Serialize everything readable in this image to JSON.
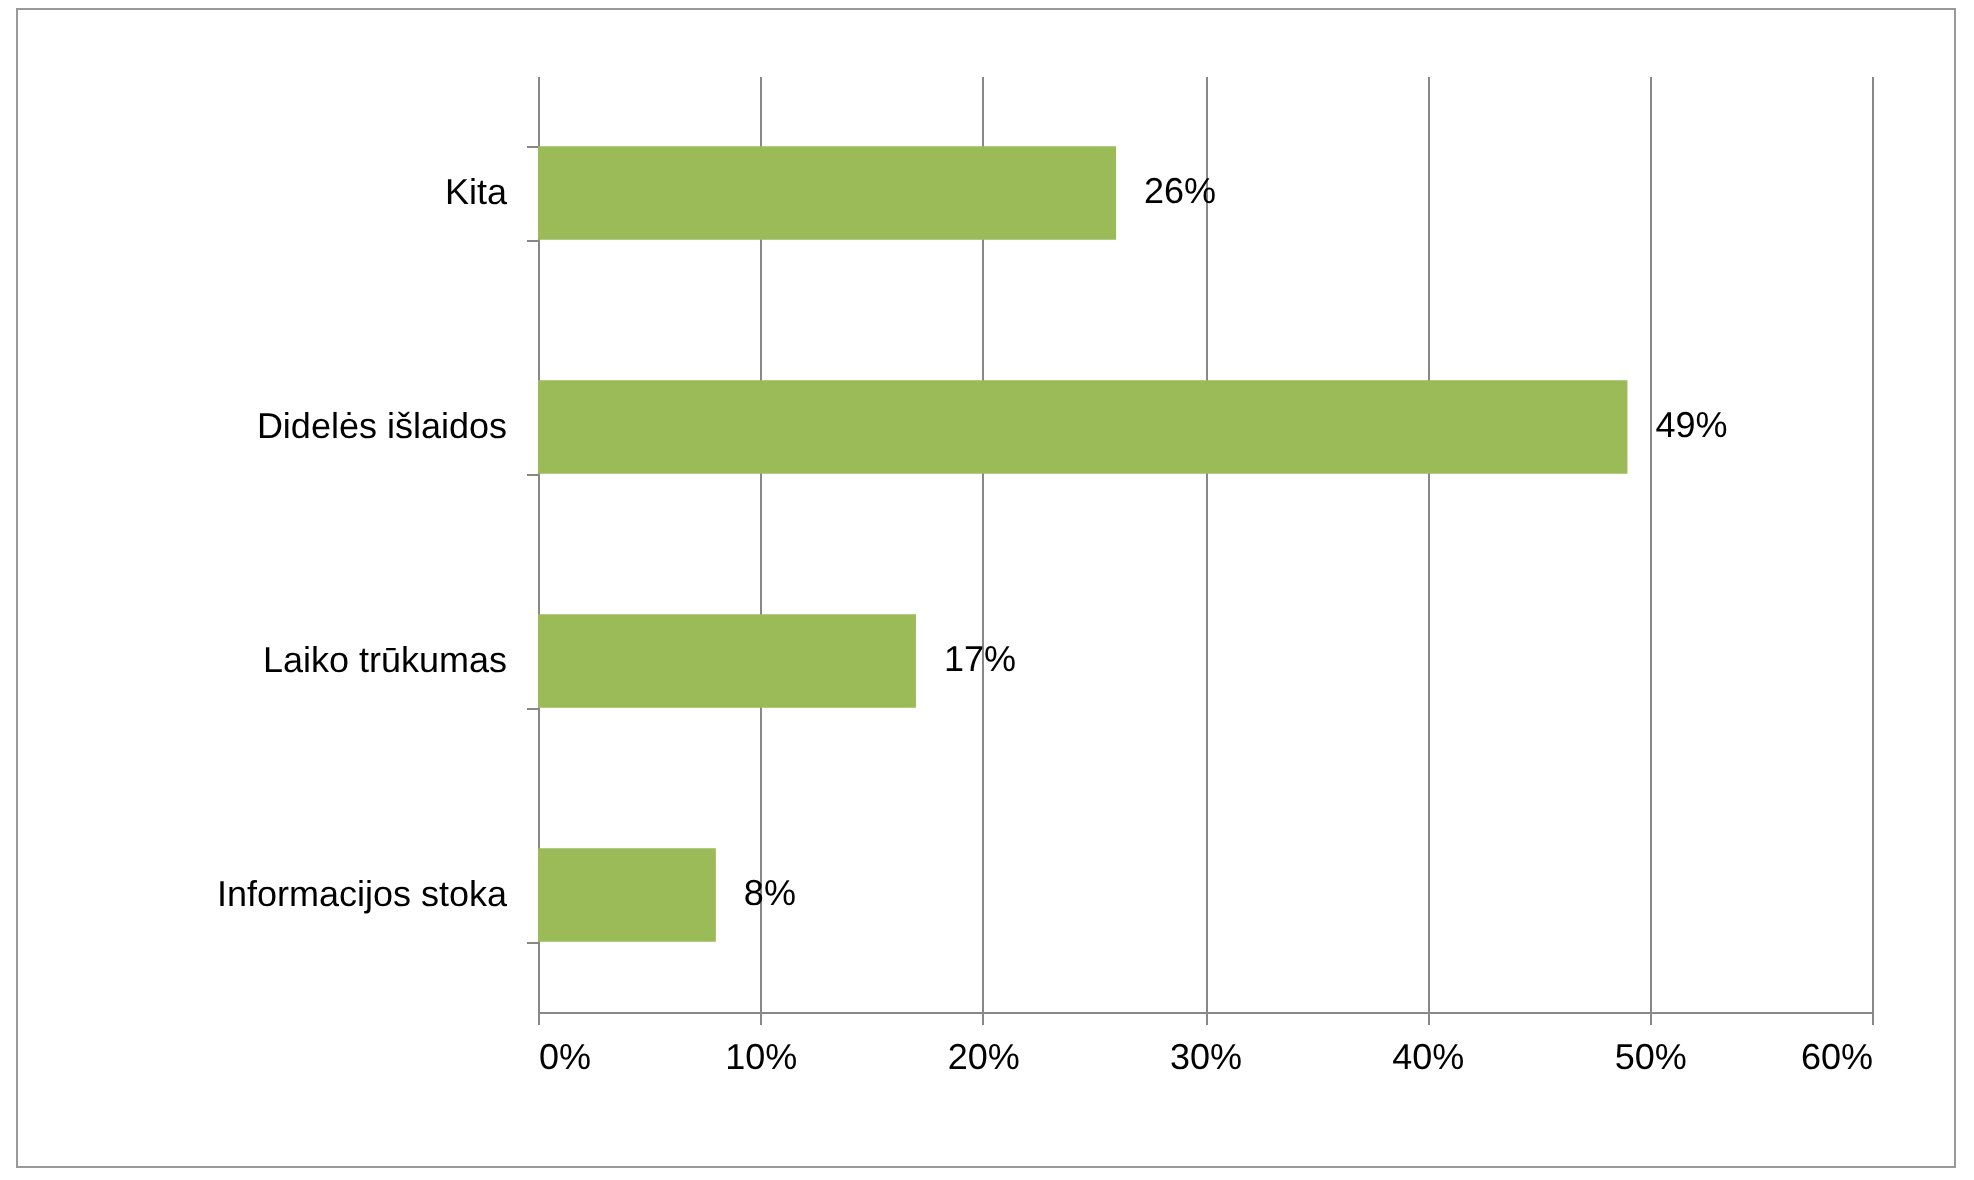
{
  "chart_data": {
    "type": "bar",
    "orientation": "horizontal",
    "categories": [
      "Kita",
      "Didelės išlaidos",
      "Laiko trūkumas",
      "Informacijos stoka"
    ],
    "values": [
      26,
      49,
      17,
      8
    ],
    "value_labels": [
      "26%",
      "49%",
      "17%",
      "8%"
    ],
    "color": "#9bbb59",
    "xlim": [
      0,
      60
    ],
    "xticks": [
      {
        "value": 0,
        "label": "0%"
      },
      {
        "value": 10,
        "label": "10%"
      },
      {
        "value": 20,
        "label": "20%"
      },
      {
        "value": 30,
        "label": "30%"
      },
      {
        "value": 40,
        "label": "40%"
      },
      {
        "value": 50,
        "label": "50%"
      },
      {
        "value": 60,
        "label": "60%"
      }
    ],
    "grid": "x"
  }
}
